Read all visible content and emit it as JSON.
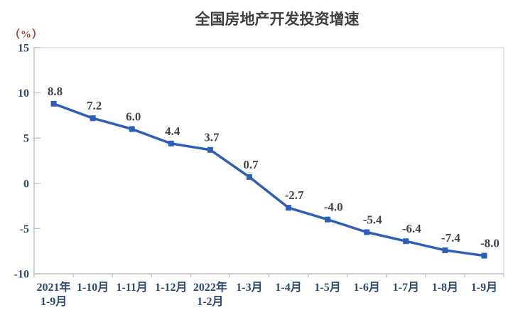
{
  "chart": {
    "title": "全国房地产开发投资增速",
    "unit_label": "（%）"
  },
  "chart_data": {
    "type": "line",
    "title": "全国房地产开发投资增速",
    "ylabel": "%",
    "xlabel": "",
    "categories": [
      [
        "2021年",
        "1-9月"
      ],
      [
        "1-10月"
      ],
      [
        "1-11月"
      ],
      [
        "1-12月"
      ],
      [
        "2022年",
        "1-2月"
      ],
      [
        "1-3月"
      ],
      [
        "1-4月"
      ],
      [
        "1-5月"
      ],
      [
        "1-6月"
      ],
      [
        "1-7月"
      ],
      [
        "1-8月"
      ],
      [
        "1-9月"
      ]
    ],
    "series": [
      {
        "name": "房地产开发投资增速",
        "values": [
          8.8,
          7.2,
          6.0,
          4.4,
          3.7,
          0.7,
          -2.7,
          -4.0,
          -5.4,
          -6.4,
          -7.4,
          -8.0
        ],
        "value_labels": [
          "8.8",
          "7.2",
          "6.0",
          "4.4",
          "3.7",
          "0.7",
          "-2.7",
          "-4.0",
          "-5.4",
          "-6.4",
          "-7.4",
          "-8.0"
        ]
      }
    ],
    "ylim": [
      -10,
      15
    ],
    "y_ticks": [
      15,
      10,
      5,
      0,
      -5,
      -10
    ],
    "y_tick_labels": [
      "15",
      "10",
      "5",
      "0",
      "-5",
      "-10"
    ],
    "grid": false,
    "legend": "none",
    "marker": "square",
    "colors": {
      "line": "#2d5fb9",
      "marker": "#2d5fb9",
      "axis_line": "#c2c2c2",
      "plot_border": "#dcdcdc",
      "tick_label": "#2b4a73",
      "data_label": "#40454d",
      "title": "#3f3f3f",
      "unit_label": "#a14b33"
    }
  }
}
